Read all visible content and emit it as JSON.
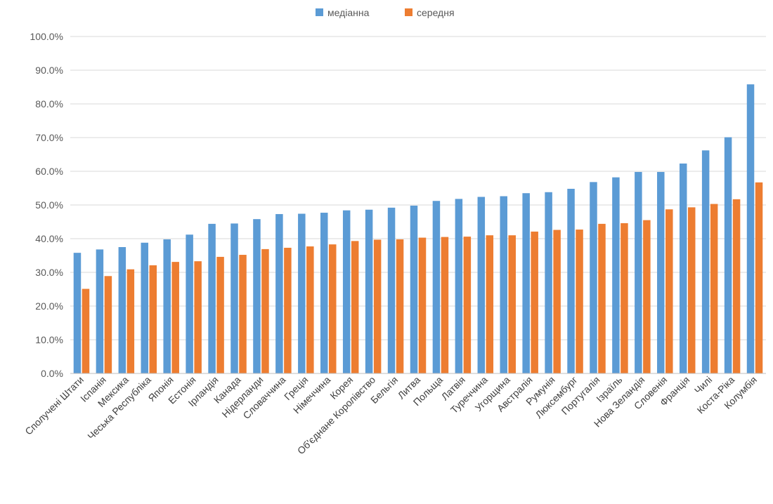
{
  "chart_data": {
    "type": "bar",
    "title": "",
    "xlabel": "",
    "ylabel": "",
    "ylim": [
      0,
      100
    ],
    "y_ticks": [
      "0.0%",
      "10.0%",
      "20.0%",
      "30.0%",
      "40.0%",
      "50.0%",
      "60.0%",
      "70.0%",
      "80.0%",
      "90.0%",
      "100.0%"
    ],
    "grid": true,
    "legend_position": "top-center",
    "categories": [
      "Сполучені Штати",
      "Іспанія",
      "Мексика",
      "Чеська Республіка",
      "Японія",
      "Естонія",
      "Ірландія",
      "Канада",
      "Нідерланди",
      "Словаччина",
      "Греція",
      "Німеччина",
      "Корея",
      "Об'єднане Королівство",
      "Бельгія",
      "Литва",
      "Польща",
      "Латвія",
      "Туреччина",
      "Угорщина",
      "Австралія",
      "Румунія",
      "Люксембург",
      "Португалія",
      "Ізраїль",
      "Нова Зеландія",
      "Словенія",
      "Франція",
      "Чилі",
      "Коста-Ріка",
      "Колумбія"
    ],
    "series": [
      {
        "name": "медіанна",
        "color": "#5B9BD5",
        "values": [
          35.8,
          36.8,
          37.5,
          38.8,
          39.8,
          41.2,
          44.4,
          44.5,
          45.8,
          47.3,
          47.4,
          47.7,
          48.4,
          48.6,
          49.2,
          49.8,
          51.2,
          51.8,
          52.4,
          52.6,
          53.5,
          53.8,
          54.8,
          56.8,
          58.2,
          59.8,
          59.8,
          62.3,
          66.2,
          70.1,
          85.8
        ]
      },
      {
        "name": "середня",
        "color": "#ED7D31",
        "values": [
          25.1,
          28.9,
          30.9,
          32.1,
          33.1,
          33.3,
          34.6,
          35.2,
          36.9,
          37.3,
          37.7,
          38.3,
          39.3,
          39.7,
          39.8,
          40.3,
          40.5,
          40.6,
          41.0,
          41.0,
          42.1,
          42.6,
          42.7,
          44.4,
          44.6,
          45.5,
          48.7,
          49.3,
          50.3,
          51.7,
          56.7
        ]
      }
    ]
  }
}
